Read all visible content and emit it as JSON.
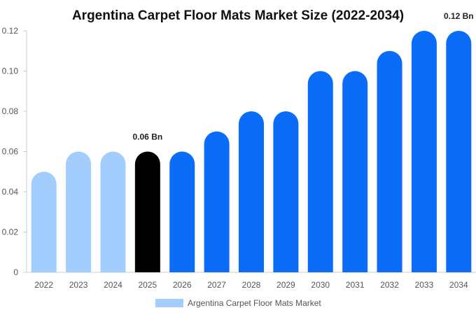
{
  "chart_data": {
    "type": "bar",
    "title": "Argentina Carpet Floor Mats Market Size (2022-2034)",
    "xlabel": "",
    "ylabel": "",
    "categories": [
      "2022",
      "2023",
      "2024",
      "2025",
      "2026",
      "2027",
      "2028",
      "2029",
      "2030",
      "2031",
      "2032",
      "2033",
      "2034"
    ],
    "series": [
      {
        "name": "Argentina Carpet Floor Mats Market",
        "values": [
          0.05,
          0.06,
          0.06,
          0.06,
          0.06,
          0.07,
          0.08,
          0.08,
          0.1,
          0.1,
          0.11,
          0.12,
          0.12
        ]
      }
    ],
    "ylim": [
      0,
      0.12
    ],
    "yticks": [
      "0",
      "0.02",
      "0.04",
      "0.06",
      "0.08",
      "0.10",
      "0.12"
    ],
    "ytick_values": [
      0,
      0.02,
      0.04,
      0.06,
      0.08,
      0.1,
      0.12
    ],
    "data_labels": [
      {
        "category": "2025",
        "text": "0.06 Bn"
      },
      {
        "category": "2034",
        "text": "0.12 Bn"
      }
    ],
    "legend_position": "bottom",
    "grid": false,
    "colors": {
      "historical": "#a3cdfd",
      "current": "#000000",
      "forecast": "#0a6cf7",
      "legend_swatch": "#a3cdfd",
      "axis": "#cccccc"
    },
    "color_groups": {
      "historical": [
        "2022",
        "2023",
        "2024"
      ],
      "current": [
        "2025"
      ],
      "forecast": [
        "2026",
        "2027",
        "2028",
        "2029",
        "2030",
        "2031",
        "2032",
        "2033",
        "2034"
      ]
    }
  }
}
